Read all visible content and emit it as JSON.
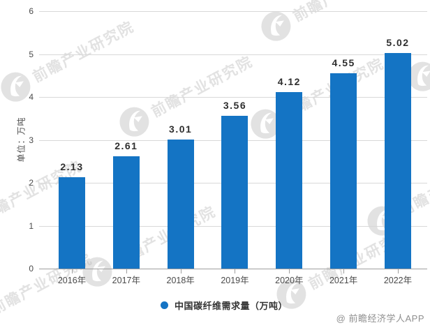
{
  "chart_data": {
    "type": "bar",
    "title": "",
    "categories": [
      "2016年",
      "2017年",
      "2018年",
      "2019年",
      "2020年",
      "2021年",
      "2022年"
    ],
    "values": [
      2.13,
      2.61,
      3.01,
      3.56,
      4.12,
      4.55,
      5.02
    ],
    "value_labels": [
      "2.13",
      "2.61",
      "3.01",
      "3.56",
      "4.12",
      "4.55",
      "5.02"
    ],
    "xlabel": "",
    "ylabel": "单位：万吨",
    "ylim": [
      0,
      6
    ],
    "yticks": [
      0,
      1,
      2,
      3,
      4,
      5,
      6
    ],
    "grid": true,
    "legend": {
      "label": "中国碳纤维需求量（万吨）",
      "position": "bottom-center"
    },
    "bar_color": "#1474c4"
  },
  "watermark": {
    "brand_text": "前瞻产业研究院",
    "logo": "qianzhan-bird-logo"
  },
  "attribution": "@ 前瞻经济学人APP",
  "colors": {
    "bar": "#1474c4",
    "grid": "#d8d8d8",
    "axis_line": "#9e9e9e",
    "tick_label": "#4a4a4a",
    "value_label": "#2e2e2e",
    "legend_text": "#333333",
    "attribution": "#8f8f8f",
    "watermark": "#b5b5b5"
  }
}
